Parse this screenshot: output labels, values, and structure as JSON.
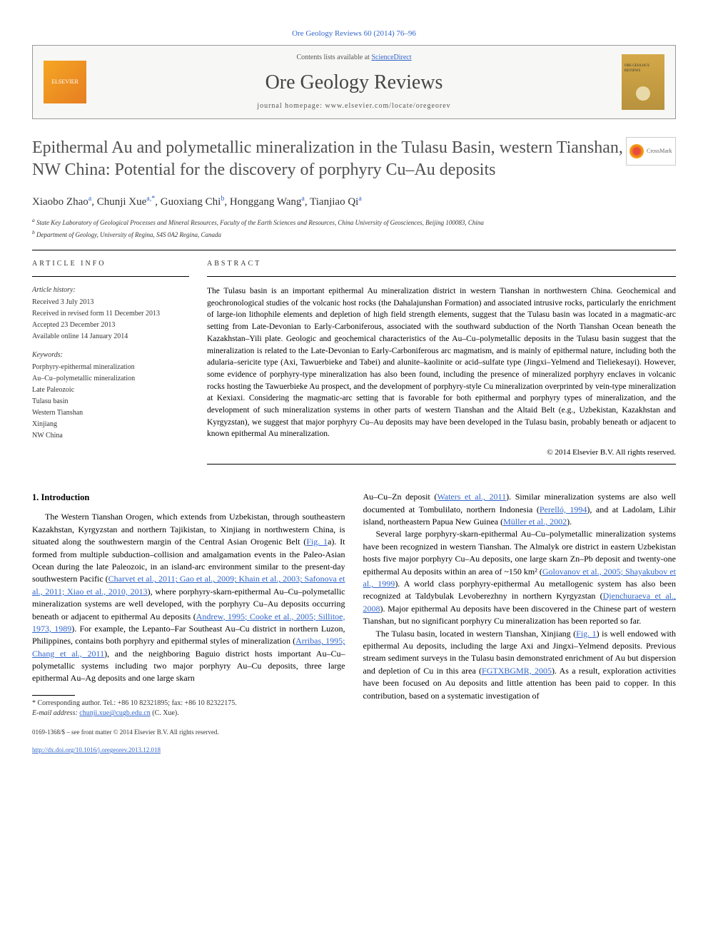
{
  "topLink": "Ore Geology Reviews 60 (2014) 76–96",
  "header": {
    "contentsPrefix": "Contents lists available at ",
    "contentsLink": "ScienceDirect",
    "journalName": "Ore Geology Reviews",
    "homepageLabel": "journal homepage: www.elsevier.com/locate/oregeorev",
    "elsevierText": "ELSEVIER",
    "coverTitle": "ORE GEOLOGY REVIEWS"
  },
  "crossmark": "CrossMark",
  "title": "Epithermal Au and polymetallic mineralization in the Tulasu Basin, western Tianshan, NW China: Potential for the discovery of porphyry Cu–Au deposits",
  "authors": [
    {
      "name": "Xiaobo Zhao",
      "aff": "a"
    },
    {
      "name": "Chunji Xue",
      "aff": "a,*"
    },
    {
      "name": "Guoxiang Chi",
      "aff": "b"
    },
    {
      "name": "Honggang Wang",
      "aff": "a"
    },
    {
      "name": "Tianjiao Qi",
      "aff": "a"
    }
  ],
  "affiliations": [
    {
      "sup": "a",
      "text": "State Key Laboratory of Geological Processes and Mineral Resources, Faculty of the Earth Sciences and Resources, China University of Geosciences, Beijing 100083, China"
    },
    {
      "sup": "b",
      "text": "Department of Geology, University of Regina, S4S 0A2 Regina, Canada"
    }
  ],
  "articleInfo": {
    "heading": "ARTICLE INFO",
    "historyLabel": "Article history:",
    "history": [
      "Received 3 July 2013",
      "Received in revised form 11 December 2013",
      "Accepted 23 December 2013",
      "Available online 14 January 2014"
    ],
    "keywordsLabel": "Keywords:",
    "keywords": [
      "Porphyry-epithermal mineralization",
      "Au–Cu–polymetallic mineralization",
      "Late Paleozoic",
      "Tulasu basin",
      "Western Tianshan",
      "Xinjiang",
      "NW China"
    ]
  },
  "abstract": {
    "heading": "ABSTRACT",
    "text": "The Tulasu basin is an important epithermal Au mineralization district in western Tianshan in northwestern China. Geochemical and geochronological studies of the volcanic host rocks (the Dahalajunshan Formation) and associated intrusive rocks, particularly the enrichment of large-ion lithophile elements and depletion of high field strength elements, suggest that the Tulasu basin was located in a magmatic-arc setting from Late-Devonian to Early-Carboniferous, associated with the southward subduction of the North Tianshan Ocean beneath the Kazakhstan–Yili plate. Geologic and geochemical characteristics of the Au–Cu–polymetallic deposits in the Tulasu basin suggest that the mineralization is related to the Late-Devonian to Early-Carboniferous arc magmatism, and is mainly of epithermal nature, including both the adularia–sericite type (Axi, Tawuerbieke and Tabei) and alunite–kaolinite or acid–sulfate type (Jingxi–Yelmend and Tieliekesayi). However, some evidence of porphyry-type mineralization has also been found, including the presence of mineralized porphyry enclaves in volcanic rocks hosting the Tawuerbieke Au prospect, and the development of porphyry-style Cu mineralization overprinted by vein-type mineralization at Kexiaxi. Considering the magmatic-arc setting that is favorable for both epithermal and porphyry types of mineralization, and the development of such mineralization systems in other parts of western Tianshan and the Altaid Belt (e.g., Uzbekistan, Kazakhstan and Kyrgyzstan), we suggest that major porphyry Cu–Au deposits may have been developed in the Tulasu basin, probably beneath or adjacent to known epithermal Au mineralization.",
    "copyright": "© 2014 Elsevier B.V. All rights reserved."
  },
  "intro": {
    "heading": "1. Introduction",
    "col1p1_a": "The Western Tianshan Orogen, which extends from Uzbekistan, through southeastern Kazakhstan, Kyrgyzstan and northern Tajikistan, to Xinjiang in northwestern China, is situated along the southwestern margin of the Central Asian Orogenic Belt (",
    "fig1a": "Fig. 1",
    "col1p1_b": "a). It formed from multiple subduction–collision and amalgamation events in the Paleo-Asian Ocean during the late Paleozoic, in an island-arc environment similar to the present-day southwestern Pacific (",
    "refs1": "Charvet et al., 2011; Gao et al., 2009; Khain et al., 2003; Safonova et al., 2011; Xiao et al., 2010, 2013",
    "col1p1_c": "), where porphyry-skarn-epithermal Au–Cu–polymetallic mineralization systems are well developed, with the porphyry Cu–Au deposits occurring beneath or adjacent to epithermal Au deposits (",
    "refs2": "Andrew, 1995; Cooke et al., 2005; Sillitoe, 1973, 1989",
    "col1p1_d": "). For example, the Lepanto–Far Southeast Au–Cu district in northern Luzon, Philippines, contains both porphyry and epithermal styles of mineralization (",
    "refs3": "Arribas, 1995; Chang et al., 2011",
    "col1p1_e": "), and the neighboring Baguio district hosts important Au–Cu–polymetallic systems including two major porphyry Au–Cu deposits, three large epithermal Au–Ag deposits and one large skarn",
    "col2p1_a": "Au–Cu–Zn deposit (",
    "refs4": "Waters et al., 2011",
    "col2p1_b": "). Similar mineralization systems are also well documented at Tombulilato, northern Indonesia (",
    "refs5": "Perelló, 1994",
    "col2p1_c": "), and at Ladolam, Lihir island, northeastern Papua New Guinea (",
    "refs6": "Müller et al., 2002",
    "col2p1_d": ").",
    "col2p2_a": "Several large porphyry-skarn-epithermal Au–Cu–polymetallic mineralization systems have been recognized in western Tianshan. The Almalyk ore district in eastern Uzbekistan hosts five major porphyry Cu–Au deposits, one large skarn Zn–Pb deposit and twenty-one epithermal Au deposits within an area of ~150 km² (",
    "refs7": "Golovanov et al., 2005; Shayakubov et al., 1999",
    "col2p2_b": "). A world class porphyry-epithermal Au metallogenic system has also been recognized at Taldybulak Levoberezhny in northern Kyrgyzstan (",
    "refs8": "Djenchuraeva et al., 2008",
    "col2p2_c": "). Major epithermal Au deposits have been discovered in the Chinese part of western Tianshan, but no significant porphyry Cu mineralization has been reported so far.",
    "col2p3_a": "The Tulasu basin, located in western Tianshan, Xinjiang (",
    "fig1b": "Fig. 1",
    "col2p3_b": ") is well endowed with epithermal Au deposits, including the large Axi and Jingxi–Yelmend deposits. Previous stream sediment surveys in the Tulasu basin demonstrated enrichment of Au but dispersion and depletion of Cu in this area (",
    "refs9": "FGTXBGMR, 2005",
    "col2p3_c": "). As a result, exploration activities have been focused on Au deposits and little attention has been paid to copper. In this contribution, based on a systematic investigation of"
  },
  "footnote": {
    "corr": "* Corresponding author. Tel.: +86 10 82321895; fax: +86 10 82322175.",
    "emailLabel": "E-mail address: ",
    "email": "chunji.xue@cugb.edu.cn",
    "emailSuffix": " (C. Xue)."
  },
  "footer": {
    "line1": "0169-1368/$ – see front matter © 2014 Elsevier B.V. All rights reserved.",
    "doi": "http://dx.doi.org/10.1016/j.oregeorev.2013.12.018"
  },
  "colors": {
    "link": "#3366cc",
    "text": "#000000",
    "muted": "#555555",
    "titleGrey": "#505050"
  }
}
